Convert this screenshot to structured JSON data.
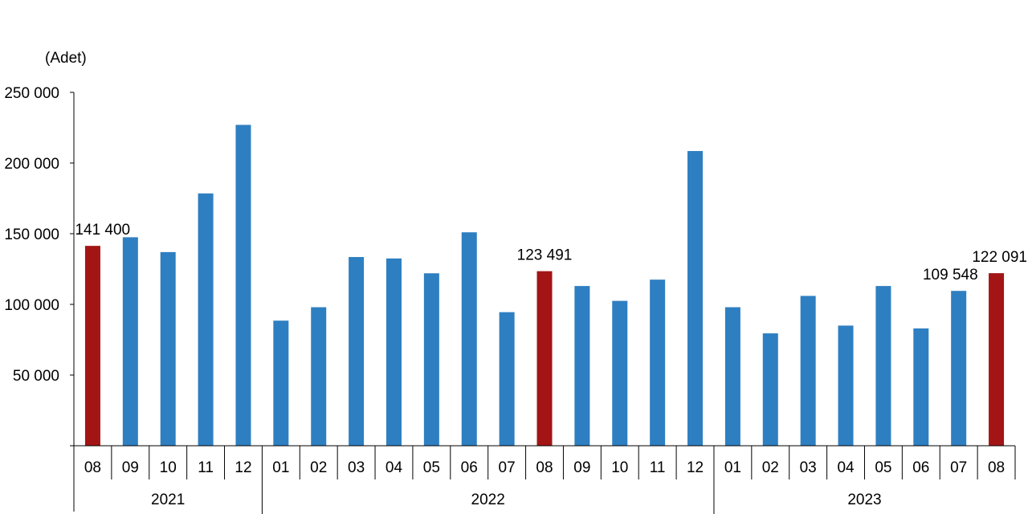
{
  "chart_data": {
    "type": "bar",
    "unit": "(Adet)",
    "categories": [
      "08",
      "09",
      "10",
      "11",
      "12",
      "01",
      "02",
      "03",
      "04",
      "05",
      "06",
      "07",
      "08",
      "09",
      "10",
      "11",
      "12",
      "01",
      "02",
      "03",
      "04",
      "05",
      "06",
      "07",
      "08"
    ],
    "groups": [
      {
        "label": "2021",
        "count": 5
      },
      {
        "label": "2022",
        "count": 12
      },
      {
        "label": "2023",
        "count": 8
      }
    ],
    "values": [
      141400,
      147500,
      137000,
      178500,
      227000,
      88500,
      98000,
      133500,
      132500,
      122000,
      151000,
      94500,
      123491,
      113000,
      102500,
      117500,
      208500,
      98000,
      79500,
      106000,
      85000,
      113000,
      83000,
      109548,
      122091
    ],
    "highlighted_indices": [
      0,
      12,
      24
    ],
    "data_labels": [
      {
        "index": 0,
        "text": "141 400"
      },
      {
        "index": 12,
        "text": "123 491"
      },
      {
        "index": 23,
        "text": "109 548"
      },
      {
        "index": 24,
        "text": "122 091"
      }
    ],
    "yticks": [
      {
        "value": 250000,
        "label": "250 000"
      },
      {
        "value": 200000,
        "label": "200 000"
      },
      {
        "value": 150000,
        "label": "150 000"
      },
      {
        "value": 100000,
        "label": "100 000"
      },
      {
        "value": 50000,
        "label": "50 000"
      },
      {
        "value": 0,
        "label": ""
      }
    ],
    "ylim": [
      0,
      250000
    ],
    "grid": false,
    "colors": {
      "bar": "#2e7fc1",
      "highlight": "#a31515",
      "axis": "#000000"
    }
  }
}
